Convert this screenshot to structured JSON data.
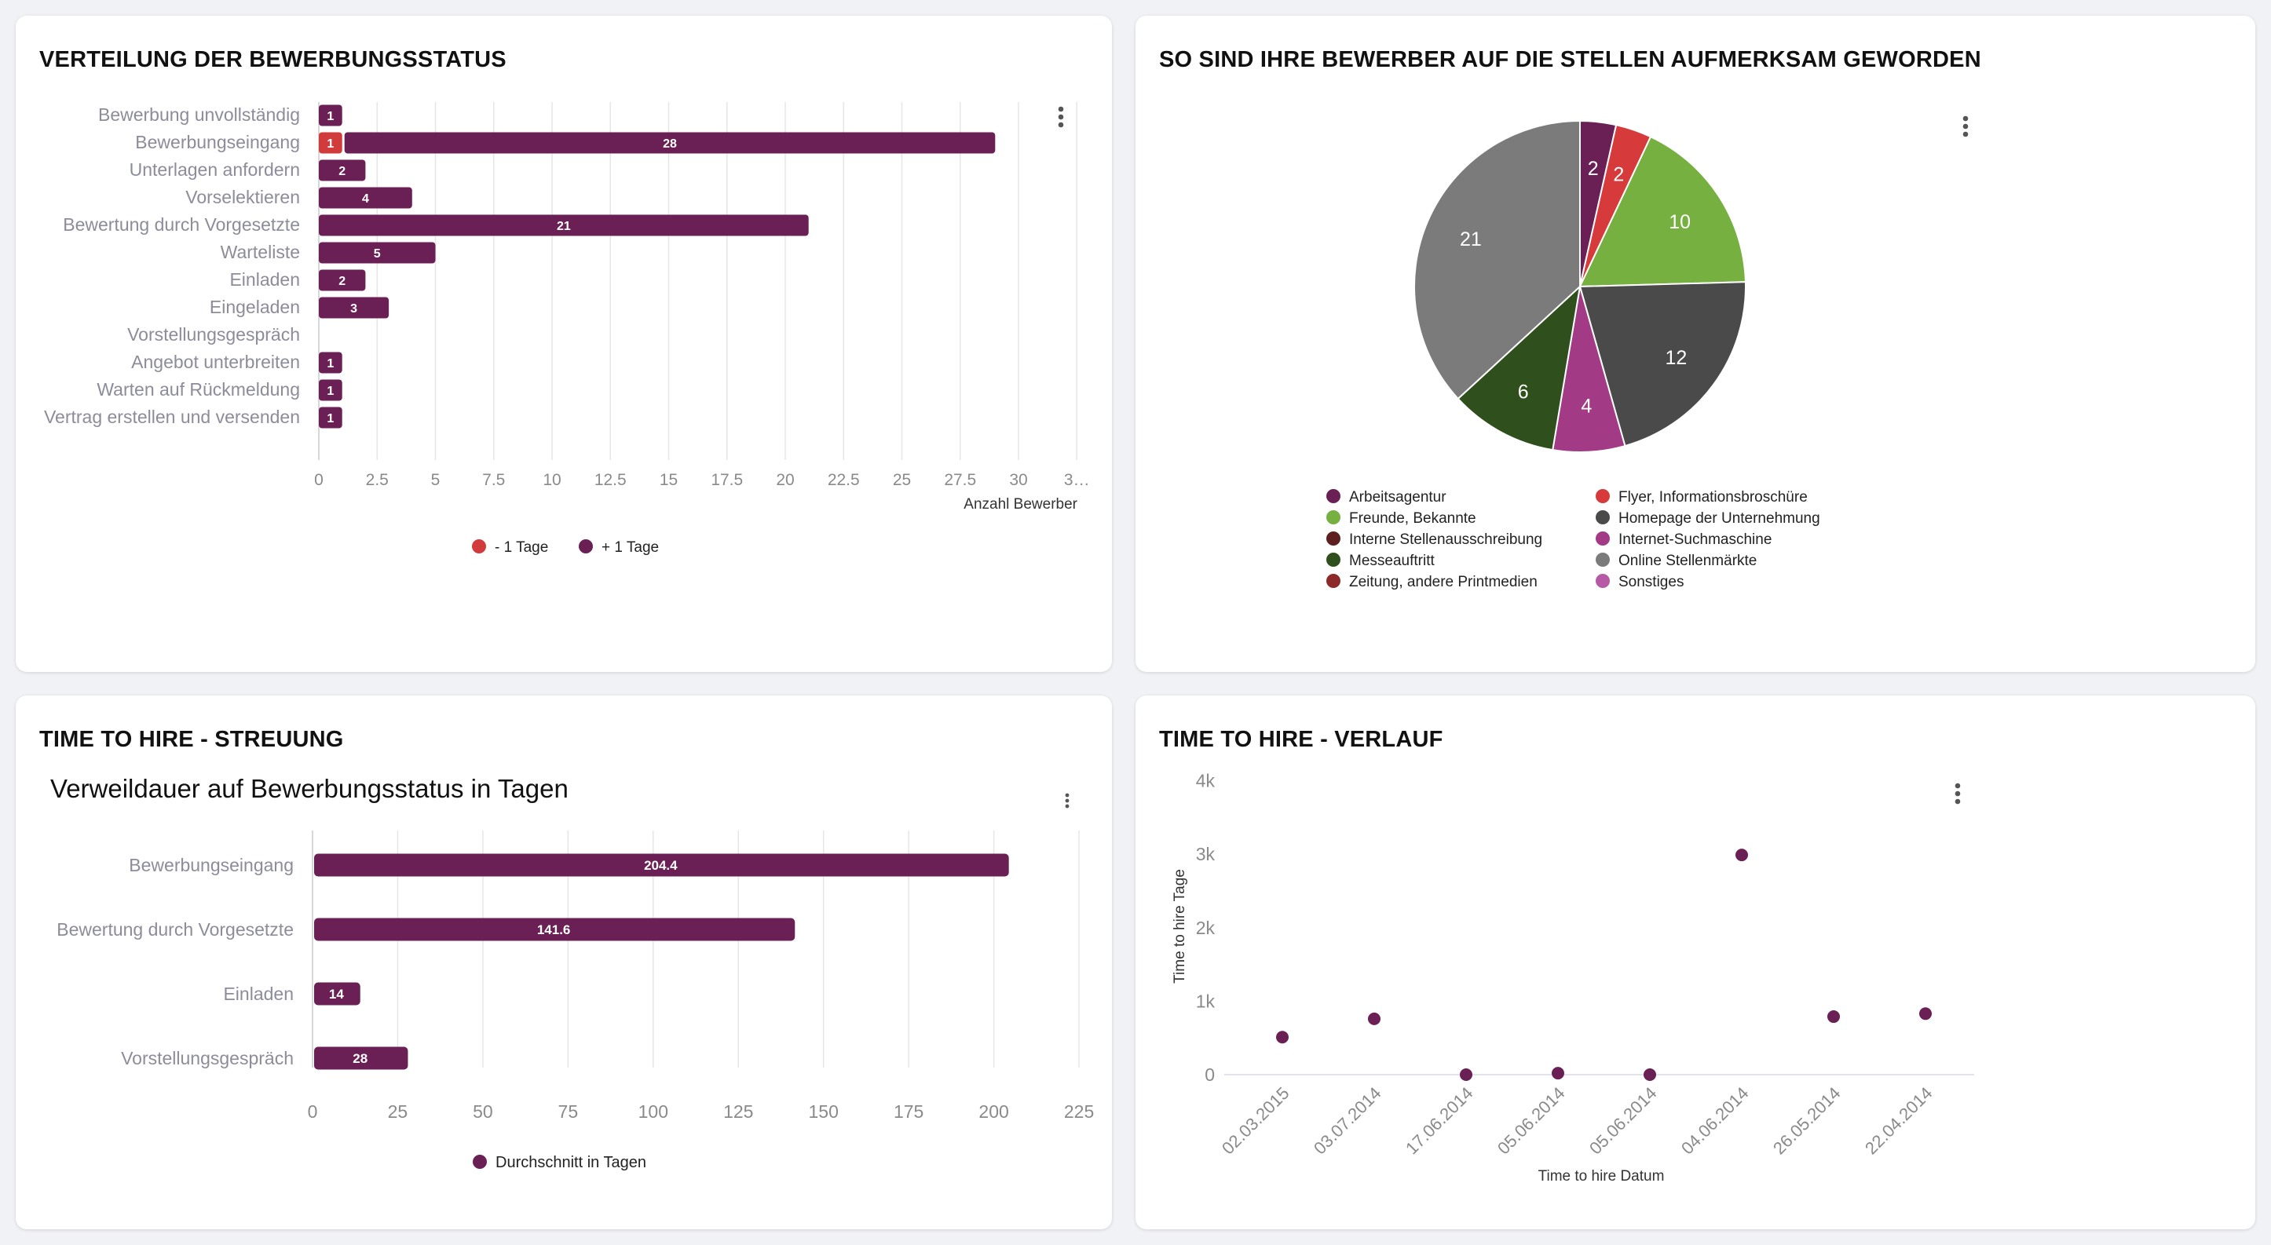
{
  "cards": {
    "status": {
      "title": "VERTEILUNG DER BEWERBUNGSSTATUS",
      "chart_data": {
        "type": "bar",
        "orientation": "horizontal",
        "stacked": true,
        "categories": [
          "Bewerbung unvollständig",
          "Bewerbungseingang",
          "Unterlagen anfordern",
          "Vorselektieren",
          "Bewertung durch Vorgesetzte",
          "Warteliste",
          "Einladen",
          "Eingeladen",
          "Vorstellungsgespräch",
          "Angebot unterbreiten",
          "Warten auf Rückmeldung",
          "Vertrag erstellen und versenden"
        ],
        "series": [
          {
            "name": "- 1 Tage",
            "color": "#d13b3b",
            "values": [
              0,
              1,
              0,
              0,
              0,
              0,
              0,
              0,
              0,
              0,
              0,
              0
            ]
          },
          {
            "name": "+ 1 Tage",
            "color": "#6b2055",
            "values": [
              1,
              28,
              2,
              4,
              21,
              5,
              2,
              3,
              0,
              1,
              1,
              1
            ]
          }
        ],
        "xticks": [
          "0",
          "2.5",
          "5",
          "7.5",
          "10",
          "12.5",
          "15",
          "17.5",
          "20",
          "22.5",
          "25",
          "27.5",
          "30",
          "3…"
        ],
        "xlim": [
          0,
          32.5
        ],
        "xlabel": "Anzahl Bewerber",
        "ylabel": "",
        "legend": "bottom-center",
        "grid": true
      }
    },
    "sources": {
      "title": "SO SIND IHRE BEWERBER AUF DIE STELLEN AUFMERKSAM GEWORDEN",
      "chart_data": {
        "type": "pie",
        "slices": [
          {
            "label": "Arbeitsagentur",
            "value": 2,
            "color": "#6b2055"
          },
          {
            "label": "Flyer, Informationsbroschüre",
            "value": 2,
            "color": "#d63a3a"
          },
          {
            "label": "Freunde, Bekannte",
            "value": 10,
            "color": "#76b040"
          },
          {
            "label": "Homepage der Unternehmung",
            "value": 12,
            "color": "#4a4a4a"
          },
          {
            "label": "Internet-Suchmaschine",
            "value": 4,
            "color": "#a23a85"
          },
          {
            "label": "Messeauftritt",
            "value": 6,
            "color": "#2f4f1c"
          },
          {
            "label": "Online Stellenmärkte",
            "value": 21,
            "color": "#7b7b7b"
          }
        ],
        "legend": [
          {
            "label": "Arbeitsagentur",
            "color": "#6b2055"
          },
          {
            "label": "Flyer, Informationsbroschüre",
            "color": "#d63a3a"
          },
          {
            "label": "Freunde, Bekannte",
            "color": "#76b040"
          },
          {
            "label": "Homepage der Unternehmung",
            "color": "#4a4a4a"
          },
          {
            "label": "Interne Stellenausschreibung",
            "color": "#5e1f1f"
          },
          {
            "label": "Internet-Suchmaschine",
            "color": "#a23a85"
          },
          {
            "label": "Messeauftritt",
            "color": "#2f4f1c"
          },
          {
            "label": "Online Stellenmärkte",
            "color": "#7b7b7b"
          },
          {
            "label": "Zeitung, andere Printmedien",
            "color": "#8c2a2a"
          },
          {
            "label": "Sonstiges",
            "color": "#b65aa5"
          }
        ]
      }
    },
    "tth_spread": {
      "title": "TIME TO HIRE - STREUUNG",
      "chart_data": {
        "type": "bar",
        "orientation": "horizontal",
        "title": "Verweildauer auf Bewerbungsstatus in Tagen",
        "categories": [
          "Bewerbungseingang",
          "Bewertung durch Vorgesetzte",
          "Einladen",
          "Vorstellungsgespräch"
        ],
        "series": [
          {
            "name": "Durchschnitt in Tagen",
            "color": "#6b2055",
            "values": [
              204.4,
              141.6,
              14,
              28
            ]
          }
        ],
        "xticks": [
          "0",
          "25",
          "50",
          "75",
          "100",
          "125",
          "150",
          "175",
          "200",
          "225"
        ],
        "xlim": [
          0,
          225
        ],
        "xlabel": "",
        "ylabel": "",
        "legend": "bottom-center",
        "grid": true
      }
    },
    "tth_trend": {
      "title": "TIME TO HIRE - VERLAUF",
      "chart_data": {
        "type": "scatter",
        "color": "#6b2055",
        "x": [
          "02.03.2015",
          "03.07.2014",
          "17.06.2014",
          "05.06.2014",
          "05.06.2014",
          "04.06.2014",
          "26.05.2014",
          "22.04.2014"
        ],
        "y": [
          510,
          760,
          0,
          20,
          0,
          2990,
          790,
          830
        ],
        "yticks": [
          "0",
          "1k",
          "2k",
          "3k",
          "4k"
        ],
        "ylim": [
          0,
          4000
        ],
        "xlabel": "Time to hire Datum",
        "ylabel": "Time to hire Tage",
        "grid": false
      }
    }
  }
}
